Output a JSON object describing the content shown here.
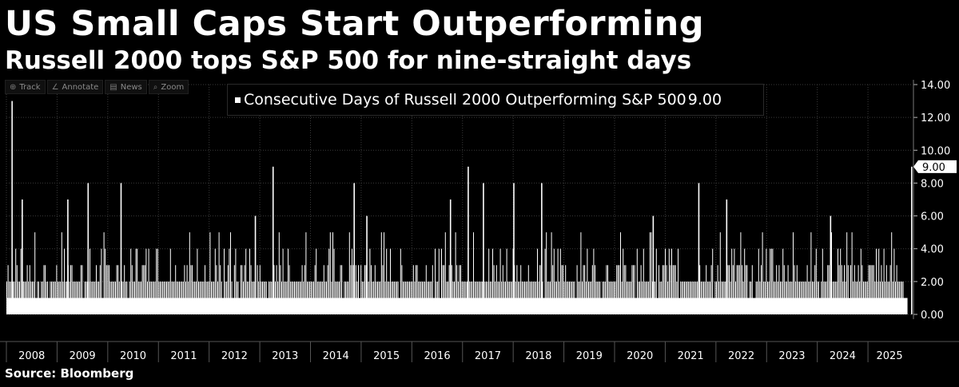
{
  "title": "US Small Caps Start Outperforming",
  "subtitle": "Russell 2000 tops S&P 500 for nine-straight days",
  "source": "Source: Bloomberg",
  "toolbar": [
    {
      "label": "Track",
      "icon": "crosshair-icon",
      "glyph": "⊕"
    },
    {
      "label": "Annotate",
      "icon": "pencil-icon",
      "glyph": "∠"
    },
    {
      "label": "News",
      "icon": "news-icon",
      "glyph": "▤"
    },
    {
      "label": "Zoom",
      "icon": "magnifier-icon",
      "glyph": "⌕"
    }
  ],
  "legend": {
    "label": "Consecutive Days of Russell 2000 Outperforming S&P 500",
    "value": "9.00"
  },
  "current_value_tag": "9.00",
  "colors": {
    "background": "#000000",
    "bar": "#ffffff",
    "grid": "#3a3a3a",
    "axis_text": "#ffffff"
  },
  "chart_data": {
    "type": "bar",
    "series": [
      {
        "name": "Consecutive Days of Russell 2000 Outperforming S&P 500",
        "last_value": 9.0
      }
    ],
    "y_ticks": [
      "0.00",
      "2.00",
      "4.00",
      "6.00",
      "8.00",
      "10.00",
      "12.00",
      "14.00"
    ],
    "ylim": [
      0,
      14
    ],
    "x_ticks": [
      "2008",
      "2009",
      "2010",
      "2011",
      "2012",
      "2013",
      "2014",
      "2015",
      "2016",
      "2017",
      "2018",
      "2019",
      "2020",
      "2021",
      "2022",
      "2023",
      "2024",
      "2025"
    ],
    "xlim": [
      2008.0,
      2025.85
    ],
    "grid": true,
    "legend_position": "top-center",
    "notable_peaks": [
      {
        "year": 2008.1,
        "value": 13
      },
      {
        "year": 2008.3,
        "value": 7
      },
      {
        "year": 2009.2,
        "value": 7
      },
      {
        "year": 2009.6,
        "value": 8
      },
      {
        "year": 2010.25,
        "value": 8
      },
      {
        "year": 2012.9,
        "value": 6
      },
      {
        "year": 2013.25,
        "value": 9
      },
      {
        "year": 2014.85,
        "value": 8
      },
      {
        "year": 2015.1,
        "value": 6
      },
      {
        "year": 2016.75,
        "value": 7
      },
      {
        "year": 2017.1,
        "value": 9
      },
      {
        "year": 2017.4,
        "value": 8
      },
      {
        "year": 2018.0,
        "value": 8
      },
      {
        "year": 2018.55,
        "value": 8
      },
      {
        "year": 2020.75,
        "value": 6
      },
      {
        "year": 2021.65,
        "value": 8
      },
      {
        "year": 2022.2,
        "value": 7
      },
      {
        "year": 2024.25,
        "value": 6
      },
      {
        "year": 2025.85,
        "value": 9
      }
    ]
  }
}
